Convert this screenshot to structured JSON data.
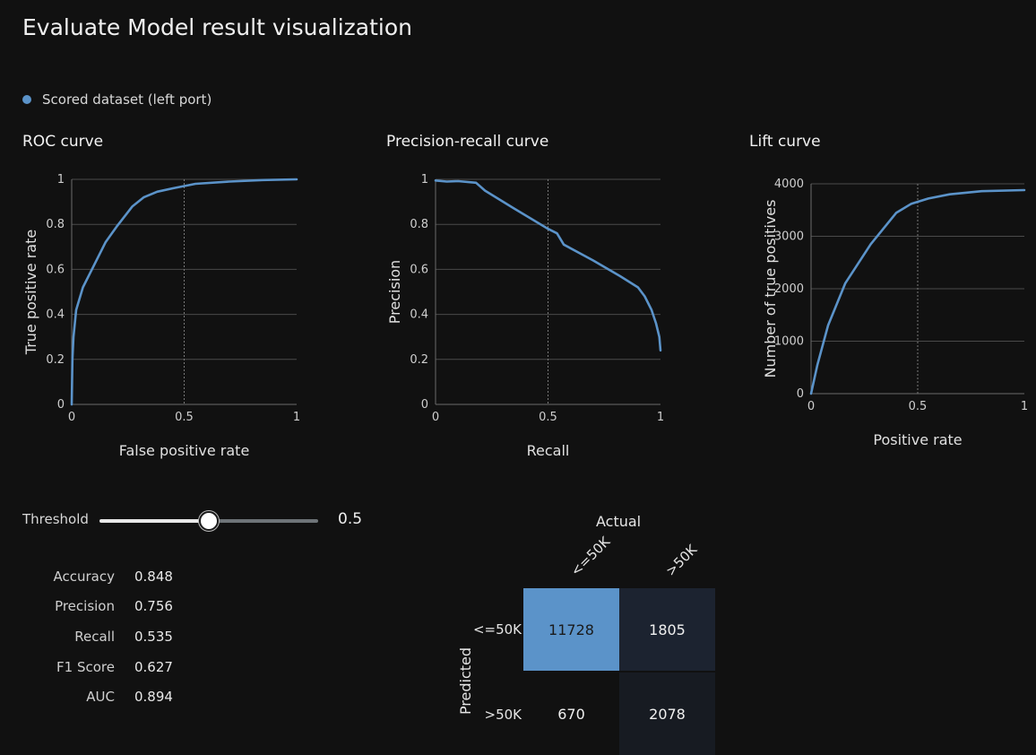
{
  "page": {
    "title": "Evaluate Model result visualization",
    "legend": "Scored dataset (left port)"
  },
  "threshold": {
    "label": "Threshold",
    "value": "0.5",
    "fraction": 0.5
  },
  "metrics": [
    {
      "name": "Accuracy",
      "value": "0.848"
    },
    {
      "name": "Precision",
      "value": "0.756"
    },
    {
      "name": "Recall",
      "value": "0.535"
    },
    {
      "name": "F1 Score",
      "value": "0.627"
    },
    {
      "name": "AUC",
      "value": "0.894"
    }
  ],
  "confusion_matrix": {
    "actual_label": "Actual",
    "predicted_label": "Predicted",
    "columns": [
      "<=50K",
      ">50K"
    ],
    "rows": [
      "<=50K",
      ">50K"
    ],
    "cells": [
      [
        "11728",
        "1805"
      ],
      [
        "670",
        "2078"
      ]
    ],
    "colors": {
      "high": "#5b93c9",
      "low": "#1c2330",
      "lower": "#111111"
    }
  },
  "colors": {
    "series": "#5b93c9",
    "background": "#111111"
  },
  "chart_data": [
    {
      "type": "line",
      "title": "ROC curve",
      "xlabel": "False positive rate",
      "ylabel": "True positive rate",
      "xlim": [
        0,
        1
      ],
      "ylim": [
        0,
        1
      ],
      "xticks": [
        "0",
        "0.5",
        "1"
      ],
      "yticks": [
        "0",
        "0.2",
        "0.4",
        "0.6",
        "0.8",
        "1"
      ],
      "threshold_x": 0.5,
      "x": [
        0,
        0.003,
        0.008,
        0.02,
        0.05,
        0.1,
        0.15,
        0.2,
        0.27,
        0.32,
        0.38,
        0.45,
        0.55,
        0.7,
        0.85,
        1.0
      ],
      "y": [
        0,
        0.2,
        0.3,
        0.42,
        0.52,
        0.62,
        0.72,
        0.79,
        0.88,
        0.92,
        0.945,
        0.96,
        0.98,
        0.99,
        0.997,
        1.0
      ]
    },
    {
      "type": "line",
      "title": "Precision-recall curve",
      "xlabel": "Recall",
      "ylabel": "Precision",
      "xlim": [
        0,
        1
      ],
      "ylim": [
        0,
        1
      ],
      "xticks": [
        "0",
        "0.5",
        "1"
      ],
      "yticks": [
        "0",
        "0.2",
        "0.4",
        "0.6",
        "0.8",
        "1"
      ],
      "threshold_x": 0.5,
      "x": [
        0,
        0.05,
        0.1,
        0.18,
        0.22,
        0.35,
        0.5,
        0.54,
        0.57,
        0.7,
        0.82,
        0.9,
        0.93,
        0.96,
        0.98,
        0.995,
        1.0
      ],
      "y": [
        0.995,
        0.99,
        0.992,
        0.985,
        0.95,
        0.87,
        0.78,
        0.76,
        0.71,
        0.64,
        0.57,
        0.52,
        0.48,
        0.42,
        0.36,
        0.3,
        0.24
      ]
    },
    {
      "type": "line",
      "title": "Lift curve",
      "xlabel": "Positive rate",
      "ylabel": "Number of true positives",
      "xlim": [
        0,
        1
      ],
      "ylim": [
        0,
        4000
      ],
      "xticks": [
        "0",
        "0.5",
        "1"
      ],
      "yticks": [
        "0",
        "1000",
        "2000",
        "3000",
        "4000"
      ],
      "threshold_x": 0.5,
      "x": [
        0,
        0.03,
        0.08,
        0.16,
        0.28,
        0.4,
        0.47,
        0.55,
        0.65,
        0.8,
        1.0
      ],
      "y": [
        0,
        550,
        1300,
        2100,
        2850,
        3450,
        3620,
        3720,
        3800,
        3860,
        3880
      ]
    }
  ]
}
